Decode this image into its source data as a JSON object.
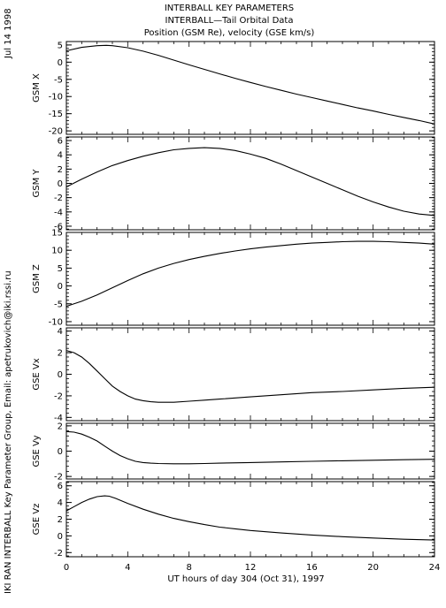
{
  "header": {
    "title_line1": "INTERBALL KEY PARAMETERS",
    "title_line2": "INTERBALL—Tail Orbital Data",
    "title_line3": "Position (GSM Re), velocity (GSE km/s)",
    "date": "Jul 14 1998",
    "credit": "IKI RAN INTERBALL Key Parameter Group, Email: apetrukovich@iki.rssi.ru"
  },
  "chart_data": [
    {
      "type": "line",
      "ylabel": "GSM X",
      "xlim": [
        0,
        24
      ],
      "ylim": [
        -21,
        6
      ],
      "yticks": [
        5,
        0,
        -5,
        -10,
        -15,
        -20
      ],
      "x": [
        0,
        1,
        2,
        2.6,
        3,
        4,
        5,
        6,
        7,
        8,
        9,
        10,
        11,
        12,
        13,
        14,
        15,
        16,
        17,
        18,
        19,
        20,
        21,
        22,
        23,
        24
      ],
      "values": [
        3.3,
        4.3,
        4.8,
        4.9,
        4.8,
        4.2,
        3.2,
        2.0,
        0.6,
        -0.8,
        -2.1,
        -3.4,
        -4.7,
        -5.9,
        -7.1,
        -8.2,
        -9.3,
        -10.3,
        -11.3,
        -12.3,
        -13.3,
        -14.2,
        -15.2,
        -16.1,
        -17.0,
        -18.0
      ]
    },
    {
      "type": "line",
      "ylabel": "GSM Y",
      "xlim": [
        0,
        24
      ],
      "ylim": [
        -6.5,
        6.5
      ],
      "yticks": [
        6,
        4,
        2,
        0,
        -2,
        -4,
        -6
      ],
      "x": [
        0,
        1,
        2,
        3,
        4,
        5,
        6,
        7,
        8,
        9,
        10,
        11,
        12,
        13,
        14,
        15,
        16,
        17,
        18,
        19,
        20,
        21,
        22,
        23,
        24
      ],
      "values": [
        -0.5,
        0.6,
        1.6,
        2.5,
        3.2,
        3.8,
        4.3,
        4.7,
        4.9,
        5.0,
        4.9,
        4.6,
        4.1,
        3.5,
        2.7,
        1.8,
        0.9,
        0.0,
        -0.9,
        -1.8,
        -2.6,
        -3.3,
        -3.9,
        -4.3,
        -4.5
      ]
    },
    {
      "type": "line",
      "ylabel": "GSM Z",
      "xlim": [
        0,
        24
      ],
      "ylim": [
        -11,
        15
      ],
      "yticks": [
        15,
        10,
        5,
        0,
        -5,
        -10
      ],
      "x": [
        0,
        1,
        2,
        3,
        4,
        5,
        6,
        7,
        8,
        9,
        10,
        11,
        12,
        13,
        14,
        15,
        16,
        17,
        18,
        19,
        20,
        21,
        22,
        23,
        24
      ],
      "values": [
        -5.7,
        -4.3,
        -2.5,
        -0.5,
        1.5,
        3.4,
        5.0,
        6.3,
        7.4,
        8.3,
        9.1,
        9.8,
        10.4,
        10.9,
        11.3,
        11.7,
        12.0,
        12.2,
        12.4,
        12.5,
        12.5,
        12.4,
        12.2,
        12.0,
        11.7
      ]
    },
    {
      "type": "line",
      "ylabel": "GSE Vx",
      "xlim": [
        0,
        24
      ],
      "ylim": [
        -4.3,
        4.3
      ],
      "yticks": [
        4,
        2,
        0,
        -2,
        -4
      ],
      "x": [
        0,
        0.5,
        1,
        1.5,
        2,
        2.5,
        3,
        3.5,
        4,
        4.5,
        5,
        5.5,
        6,
        7,
        8,
        9,
        10,
        12,
        14,
        16,
        18,
        20,
        22,
        24
      ],
      "values": [
        2.2,
        2.0,
        1.6,
        1.0,
        0.3,
        -0.4,
        -1.1,
        -1.6,
        -2.0,
        -2.3,
        -2.45,
        -2.55,
        -2.6,
        -2.6,
        -2.5,
        -2.4,
        -2.3,
        -2.1,
        -1.9,
        -1.7,
        -1.6,
        -1.45,
        -1.3,
        -1.2
      ]
    },
    {
      "type": "line",
      "ylabel": "GSE Vy",
      "xlim": [
        0,
        24
      ],
      "ylim": [
        -2.2,
        2.2
      ],
      "yticks": [
        2,
        0,
        -2
      ],
      "x": [
        0,
        0.5,
        1,
        1.5,
        2,
        2.5,
        3,
        3.5,
        4,
        4.5,
        5,
        5.5,
        6,
        7,
        8,
        9,
        10,
        12,
        14,
        16,
        18,
        20,
        22,
        24
      ],
      "values": [
        1.55,
        1.5,
        1.35,
        1.1,
        0.8,
        0.4,
        0.0,
        -0.35,
        -0.6,
        -0.8,
        -0.9,
        -0.95,
        -0.98,
        -1.0,
        -1.0,
        -0.98,
        -0.95,
        -0.9,
        -0.85,
        -0.8,
        -0.76,
        -0.72,
        -0.68,
        -0.64
      ]
    },
    {
      "type": "line",
      "ylabel": "GSE Vz",
      "xlim": [
        0,
        24
      ],
      "ylim": [
        -2.5,
        6.5
      ],
      "yticks": [
        6,
        4,
        2,
        0,
        -2
      ],
      "xlabel": "UT hours of day 304 (Oct 31), 1997",
      "xticks": [
        0,
        4,
        8,
        12,
        16,
        20,
        24
      ],
      "x": [
        0,
        0.5,
        1,
        1.5,
        2,
        2.5,
        2.8,
        3.2,
        3.6,
        4,
        5,
        6,
        7,
        8,
        9,
        10,
        11,
        12,
        14,
        16,
        18,
        20,
        22,
        24
      ],
      "values": [
        3.0,
        3.5,
        4.0,
        4.4,
        4.7,
        4.8,
        4.75,
        4.5,
        4.2,
        3.9,
        3.2,
        2.6,
        2.1,
        1.7,
        1.35,
        1.05,
        0.85,
        0.65,
        0.35,
        0.1,
        -0.1,
        -0.25,
        -0.4,
        -0.5
      ]
    }
  ]
}
